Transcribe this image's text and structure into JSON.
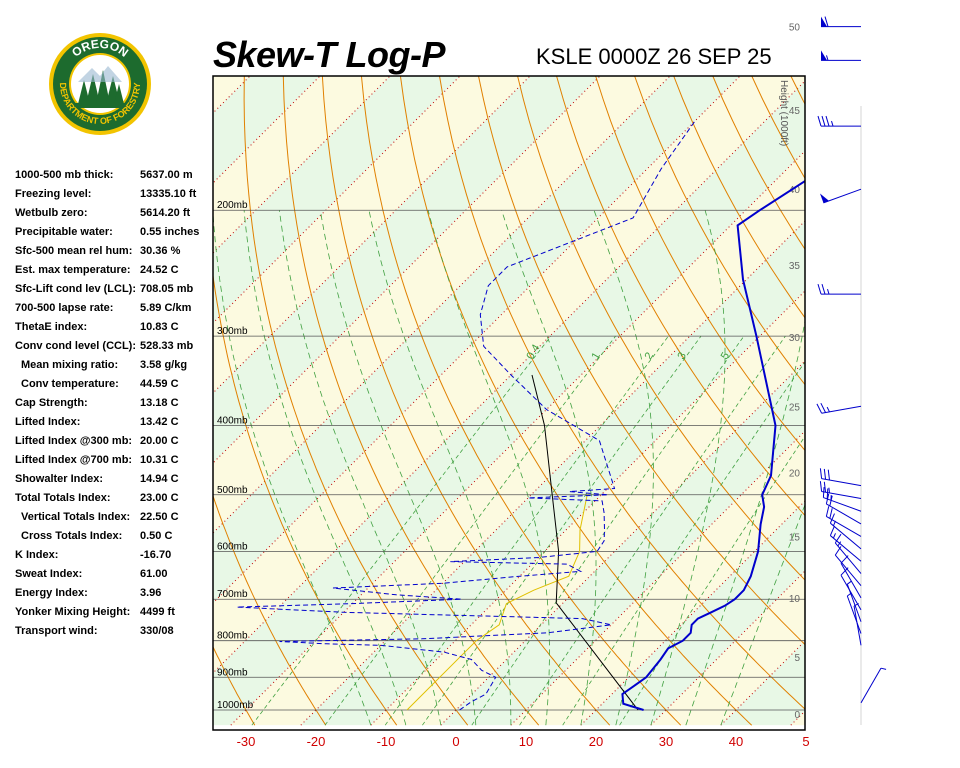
{
  "header": {
    "title": "Skew-T Log-P",
    "station": "KSLE 0000Z 26 SEP 25"
  },
  "logo": {
    "text_top": "OREGON",
    "text_ring": "DEPARTMENT OF FORESTRY",
    "colors": {
      "ring": "#1d6b2e",
      "gold": "#f2c400",
      "sky": "#ffffff"
    }
  },
  "indices": [
    {
      "label": "1000-500 mb thick:",
      "value": "5637.00 m"
    },
    {
      "label": "Freezing level:",
      "value": "13335.10 ft"
    },
    {
      "label": "Wetbulb zero:",
      "value": "5614.20 ft"
    },
    {
      "label": "Precipitable water:",
      "value": "0.55 inches"
    },
    {
      "label": "Sfc-500 mean rel hum:",
      "value": "30.36 %"
    },
    {
      "label": "Est. max temperature:",
      "value": "24.52 C"
    },
    {
      "label": "Sfc-Lift cond lev (LCL):",
      "value": "708.05 mb"
    },
    {
      "label": "700-500 lapse rate:",
      "value": "5.89 C/km"
    },
    {
      "label": "ThetaE index:",
      "value": "10.83 C"
    },
    {
      "label": "Conv cond level (CCL):",
      "value": "528.33 mb"
    },
    {
      "label": "Mean mixing ratio:",
      "value": "3.58 g/kg",
      "indent": true
    },
    {
      "label": "Conv temperature:",
      "value": "44.59 C",
      "indent": true
    },
    {
      "label": "Cap Strength:",
      "value": "13.18 C"
    },
    {
      "label": "Lifted Index:",
      "value": "13.42 C"
    },
    {
      "label": "Lifted Index @300 mb:",
      "value": "20.00 C"
    },
    {
      "label": "Lifted Index @700 mb:",
      "value": "10.31 C"
    },
    {
      "label": "Showalter Index:",
      "value": "14.94 C"
    },
    {
      "label": "Total Totals Index:",
      "value": "23.00 C"
    },
    {
      "label": "Vertical Totals Index:",
      "value": "22.50 C",
      "indent": true
    },
    {
      "label": "Cross Totals Index:",
      "value": "0.50 C",
      "indent": true
    },
    {
      "label": "K Index:",
      "value": "-16.70"
    },
    {
      "label": "Sweat Index:",
      "value": "61.00"
    },
    {
      "label": "Energy Index:",
      "value": "3.96"
    },
    {
      "label": "Yonker Mixing Height:",
      "value": "4499 ft"
    },
    {
      "label": "Transport wind:",
      "value": "330/08"
    }
  ],
  "chart_data": {
    "type": "line",
    "x_ticks": [
      "-30",
      "-20",
      "-10",
      "0",
      "10",
      "20",
      "30",
      "40",
      "5"
    ],
    "pressure_levels": [
      {
        "label": "200mb",
        "p": 200
      },
      {
        "label": "300mb",
        "p": 300
      },
      {
        "label": "400mb",
        "p": 400
      },
      {
        "label": "500mb",
        "p": 500
      },
      {
        "label": "600mb",
        "p": 600
      },
      {
        "label": "700mb",
        "p": 700
      },
      {
        "label": "800mb",
        "p": 800
      },
      {
        "label": "900mb",
        "p": 900
      },
      {
        "label": "1000mb",
        "p": 1000
      }
    ],
    "height_axis": {
      "label": "Height (1000ft)",
      "ticks": [
        0,
        5,
        10,
        15,
        20,
        25,
        30,
        35,
        40,
        45,
        50
      ]
    },
    "mixing_ratio_labels": [
      "0.4",
      "1",
      "2",
      "3",
      "5"
    ],
    "colors": {
      "temperature": "#0000cc",
      "dewpoint": "#0000cc",
      "parcel": "#000000",
      "virtual_temp": "#e0c000",
      "dry_adiabat": "#e08000",
      "moist_adiabat": "#40a040",
      "mixing_ratio": "#40a040",
      "isotherm": "#c00000",
      "isobar": "#555555",
      "wind": "#0000cc",
      "band_green": "#e8f8e6",
      "band_yellow": "#fcfae0",
      "axis_label": "#d00000"
    },
    "temperature": [
      {
        "p": 1000,
        "t": 26.8
      },
      {
        "p": 980,
        "t": 23.0
      },
      {
        "p": 950,
        "t": 21.5
      },
      {
        "p": 925,
        "t": 22.0
      },
      {
        "p": 900,
        "t": 22.5
      },
      {
        "p": 850,
        "t": 22.0
      },
      {
        "p": 820,
        "t": 21.5
      },
      {
        "p": 800,
        "t": 22.5
      },
      {
        "p": 780,
        "t": 22.5
      },
      {
        "p": 760,
        "t": 21.5
      },
      {
        "p": 745,
        "t": 21.5
      },
      {
        "p": 730,
        "t": 22.5
      },
      {
        "p": 715,
        "t": 23.5
      },
      {
        "p": 700,
        "t": 24.0
      },
      {
        "p": 680,
        "t": 24.0
      },
      {
        "p": 650,
        "t": 23.0
      },
      {
        "p": 600,
        "t": 20.5
      },
      {
        "p": 550,
        "t": 17.0
      },
      {
        "p": 520,
        "t": 15.0
      },
      {
        "p": 500,
        "t": 13.0
      },
      {
        "p": 470,
        "t": 11.5
      },
      {
        "p": 400,
        "t": 5.0
      },
      {
        "p": 300,
        "t": -10.5
      },
      {
        "p": 250,
        "t": -20.5
      },
      {
        "p": 210,
        "t": -29.0
      },
      {
        "p": 200,
        "t": -28.0
      },
      {
        "p": 150,
        "t": -21.0
      }
    ],
    "dewpoint": [
      {
        "p": 1000,
        "t": 0.5
      },
      {
        "p": 975,
        "t": 1.0
      },
      {
        "p": 950,
        "t": 2.0
      },
      {
        "p": 900,
        "t": 1.0
      },
      {
        "p": 880,
        "t": -2.0
      },
      {
        "p": 850,
        "t": -5.0
      },
      {
        "p": 830,
        "t": -10.0
      },
      {
        "p": 812,
        "t": -20.0
      },
      {
        "p": 808,
        "t": -28.0
      },
      {
        "p": 802,
        "t": -35.0
      },
      {
        "p": 795,
        "t": -15.0
      },
      {
        "p": 780,
        "t": 2.0
      },
      {
        "p": 760,
        "t": 10.0
      },
      {
        "p": 745,
        "t": 5.0
      },
      {
        "p": 730,
        "t": -30.0
      },
      {
        "p": 718,
        "t": -46.0
      },
      {
        "p": 710,
        "t": -30.0
      },
      {
        "p": 700,
        "t": -15.0
      },
      {
        "p": 690,
        "t": -25.0
      },
      {
        "p": 675,
        "t": -35.0
      },
      {
        "p": 665,
        "t": -20.0
      },
      {
        "p": 650,
        "t": -10.0
      },
      {
        "p": 640,
        "t": -2.0
      },
      {
        "p": 625,
        "t": -5.0
      },
      {
        "p": 620,
        "t": -22.0
      },
      {
        "p": 612,
        "t": -10.0
      },
      {
        "p": 600,
        "t": -2.5
      },
      {
        "p": 580,
        "t": -3.0
      },
      {
        "p": 560,
        "t": -4.5
      },
      {
        "p": 530,
        "t": -7.0
      },
      {
        "p": 510,
        "t": -9.0
      },
      {
        "p": 505,
        "t": -20.0
      },
      {
        "p": 500,
        "t": -9.0
      },
      {
        "p": 495,
        "t": -15.0
      },
      {
        "p": 490,
        "t": -9.0
      },
      {
        "p": 420,
        "t": -18.0
      },
      {
        "p": 380,
        "t": -30.0
      },
      {
        "p": 340,
        "t": -40.0
      },
      {
        "p": 310,
        "t": -48.0
      },
      {
        "p": 280,
        "t": -53.0
      },
      {
        "p": 255,
        "t": -56.0
      },
      {
        "p": 240,
        "t": -56.0
      },
      {
        "p": 205,
        "t": -45.0
      },
      {
        "p": 175,
        "t": -48.0
      },
      {
        "p": 150,
        "t": -50.0
      }
    ],
    "parcel": [
      {
        "p": 1000,
        "t": 26.0
      },
      {
        "p": 708,
        "t": -1.0
      },
      {
        "p": 600,
        "t": -8.0
      },
      {
        "p": 500,
        "t": -17.0
      },
      {
        "p": 400,
        "t": -28.0
      },
      {
        "p": 340,
        "t": -37.0
      }
    ],
    "virtual_temperature": [
      {
        "p": 1000,
        "t": -7.0
      },
      {
        "p": 800,
        "t": -7.0
      },
      {
        "p": 760,
        "t": -6.0
      },
      {
        "p": 710,
        "t": -8.0
      },
      {
        "p": 680,
        "t": -6.0
      },
      {
        "p": 650,
        "t": -3.0
      },
      {
        "p": 600,
        "t": -5.0
      },
      {
        "p": 560,
        "t": -8.0
      },
      {
        "p": 500,
        "t": -12.0
      }
    ],
    "wind_barbs": [
      {
        "height_kft": 50,
        "dir": 270,
        "kt": 60
      },
      {
        "height_kft": 48,
        "dir": 270,
        "kt": 55
      },
      {
        "height_kft": 44,
        "dir": 270,
        "kt": 35
      },
      {
        "height_kft": 40,
        "dir": 250,
        "kt": 50
      },
      {
        "height_kft": 33,
        "dir": 270,
        "kt": 25
      },
      {
        "height_kft": 25,
        "dir": 260,
        "kt": 25
      },
      {
        "height_kft": 19,
        "dir": 280,
        "kt": 30
      },
      {
        "height_kft": 18,
        "dir": 280,
        "kt": 25
      },
      {
        "height_kft": 17,
        "dir": 290,
        "kt": 25
      },
      {
        "height_kft": 16,
        "dir": 300,
        "kt": 20
      },
      {
        "height_kft": 15,
        "dir": 300,
        "kt": 20
      },
      {
        "height_kft": 14,
        "dir": 310,
        "kt": 15
      },
      {
        "height_kft": 13,
        "dir": 310,
        "kt": 15
      },
      {
        "height_kft": 12,
        "dir": 320,
        "kt": 15
      },
      {
        "height_kft": 11,
        "dir": 320,
        "kt": 10
      },
      {
        "height_kft": 10,
        "dir": 330,
        "kt": 10
      },
      {
        "height_kft": 9,
        "dir": 330,
        "kt": 10
      },
      {
        "height_kft": 8,
        "dir": 340,
        "kt": 5
      },
      {
        "height_kft": 7,
        "dir": 340,
        "kt": 5
      },
      {
        "height_kft": 6,
        "dir": 350,
        "kt": 5
      },
      {
        "height_kft": 1,
        "dir": 30,
        "kt": 5
      }
    ]
  }
}
